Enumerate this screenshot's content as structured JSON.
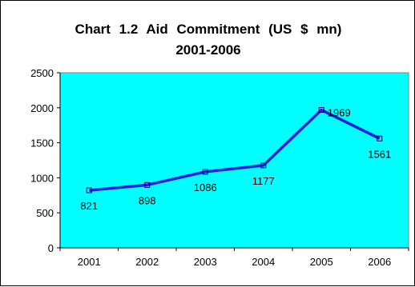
{
  "chart_data": {
    "type": "line",
    "title": "Chart 1.2    Aid Commitment (US $ mn)",
    "subtitle": "2001-2006",
    "xlabel": "",
    "ylabel": "",
    "categories": [
      "2001",
      "2002",
      "2003",
      "2004",
      "2005",
      "2006"
    ],
    "series": [
      {
        "values": [
          821,
          898,
          1086,
          1177,
          1969,
          1561
        ]
      }
    ],
    "data_labels": [
      "821",
      "898",
      "1086",
      "1177",
      "1969",
      "1561"
    ],
    "ylim": [
      0,
      2500
    ],
    "yticks": [
      0,
      500,
      1000,
      1500,
      2000,
      2500
    ],
    "grid": false,
    "legend": "none",
    "colors": {
      "plot_bg": "#00ffff",
      "line": "#1f1fe0",
      "frame": "#000000"
    }
  }
}
